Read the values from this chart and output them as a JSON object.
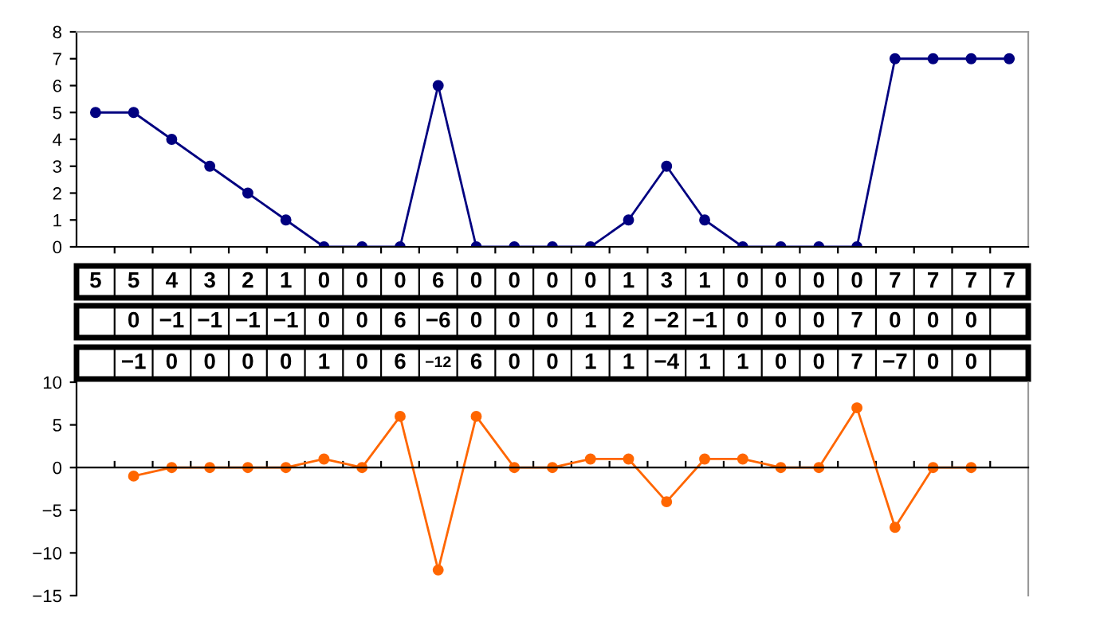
{
  "chart_data": [
    {
      "type": "line",
      "categories": [
        null,
        null,
        null,
        null,
        null,
        null,
        null,
        null,
        null,
        null,
        null,
        null,
        null,
        null,
        null,
        null,
        null,
        null,
        null,
        null,
        null,
        null,
        null,
        null,
        null
      ],
      "series": [
        {
          "color": "#000080",
          "values": [
            5,
            5,
            4,
            3,
            2,
            1,
            0,
            0,
            0,
            6,
            0,
            0,
            0,
            0,
            1,
            3,
            1,
            0,
            0,
            0,
            0,
            7,
            7,
            7,
            7
          ]
        }
      ],
      "ylim": [
        0,
        8
      ],
      "yticks": [
        0,
        1,
        2,
        3,
        4,
        5,
        6,
        7,
        8
      ],
      "tick_labels": "y",
      "marker": "circle",
      "legend": false,
      "grid": false,
      "data_labels": true
    },
    {
      "type": "other",
      "annotations": [
        "0",
        "−1",
        "−1",
        "−1",
        "−1",
        "0",
        "0",
        "6",
        "−6",
        "0",
        "0",
        "0",
        "1",
        "2",
        "−2",
        "−1",
        "0",
        "0",
        "0",
        "7",
        "0",
        "0",
        "0"
      ]
    },
    {
      "type": "other",
      "annotations": [
        "−1",
        "0",
        "0",
        "0",
        "0",
        "1",
        "0",
        "6",
        "−12",
        "6",
        "0",
        "0",
        "1",
        "1",
        "−4",
        "1",
        "1",
        "0",
        "0",
        "7",
        "−7",
        "0",
        "0"
      ]
    },
    {
      "type": "line",
      "categories": [
        null,
        null,
        null,
        null,
        null,
        null,
        null,
        null,
        null,
        null,
        null,
        null,
        null,
        null,
        null,
        null,
        null,
        null,
        null,
        null,
        null,
        null,
        null,
        null,
        null
      ],
      "series": [
        {
          "color": "#ff6600",
          "values": [
            null,
            -1,
            0,
            0,
            0,
            0,
            1,
            0,
            6,
            -12,
            6,
            0,
            0,
            1,
            1,
            -4,
            1,
            1,
            0,
            0,
            7,
            -7,
            0,
            0,
            null
          ]
        }
      ],
      "ylim": [
        -15,
        10
      ],
      "yticks": [
        -15,
        -10,
        -5,
        0,
        5,
        10
      ],
      "tick_labels": "y",
      "marker": "circle",
      "legend": false
    }
  ]
}
